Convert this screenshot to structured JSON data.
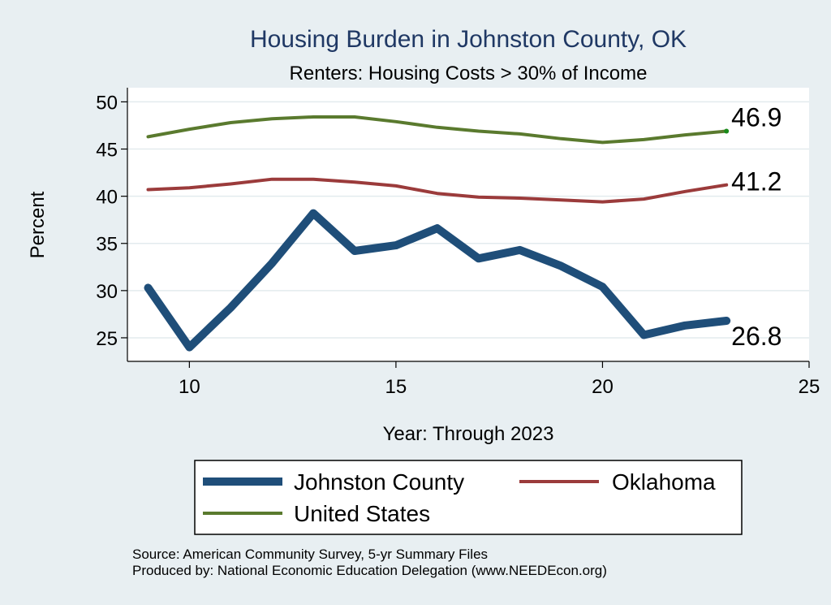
{
  "chart_data": {
    "type": "line",
    "title": "Housing Burden in Johnston County, OK",
    "subtitle": "Renters: Housing Costs > 30% of Income",
    "xlabel": "Year: Through 2023",
    "ylabel": "Percent",
    "xlim": [
      8.5,
      25
    ],
    "ylim": [
      22.5,
      51.5
    ],
    "xticks": [
      10,
      15,
      20,
      25
    ],
    "yticks": [
      25,
      30,
      35,
      40,
      45,
      50
    ],
    "grid": true,
    "x": [
      9,
      10,
      11,
      12,
      13,
      14,
      15,
      16,
      17,
      18,
      19,
      20,
      21,
      22,
      23
    ],
    "series": [
      {
        "name": "United States",
        "color": "#5a7a2e",
        "width": 4,
        "values": [
          46.3,
          47.1,
          47.8,
          48.2,
          48.4,
          48.4,
          47.9,
          47.3,
          46.9,
          46.6,
          46.1,
          45.7,
          46.0,
          46.5,
          46.9
        ],
        "end_label": "46.9"
      },
      {
        "name": "Oklahoma",
        "color": "#9b3b3b",
        "width": 4,
        "values": [
          40.7,
          40.9,
          41.3,
          41.8,
          41.8,
          41.5,
          41.1,
          40.3,
          39.9,
          39.8,
          39.6,
          39.4,
          39.7,
          40.5,
          41.2
        ],
        "end_label": "41.2"
      },
      {
        "name": "Johnston County",
        "color": "#1f4e79",
        "width": 10,
        "values": [
          30.3,
          24.0,
          28.2,
          32.9,
          38.2,
          34.2,
          34.8,
          36.6,
          33.4,
          34.3,
          32.6,
          30.4,
          25.3,
          26.3,
          26.8
        ],
        "end_label": "26.8"
      }
    ],
    "legend": {
      "placement": "bottom",
      "entries": [
        "Johnston County",
        "Oklahoma",
        "United States"
      ]
    }
  },
  "footer": {
    "source": "Source: American Community Survey, 5-yr Summary Files",
    "produced_by": "Produced by: National Economic Education Delegation (www.NEEDEcon.org)"
  }
}
